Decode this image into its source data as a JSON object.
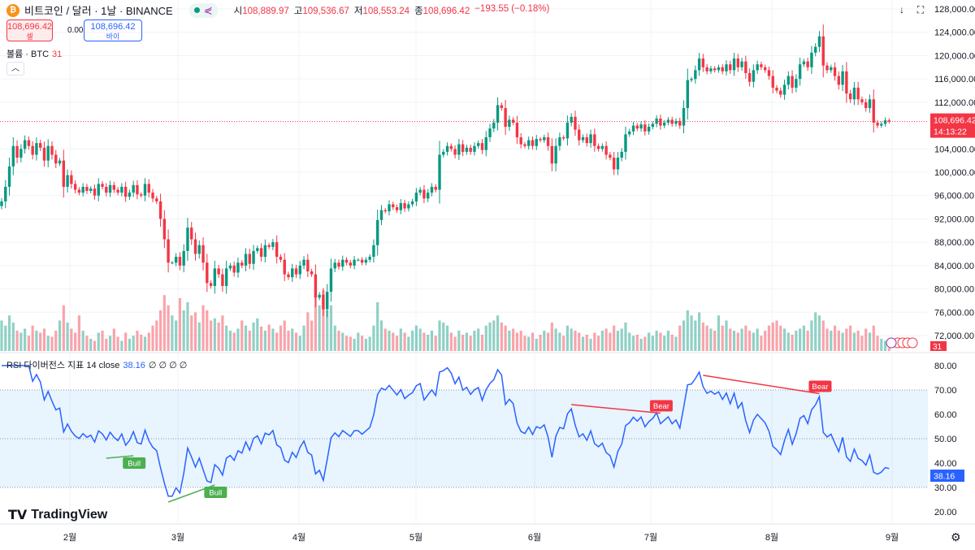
{
  "header": {
    "symbol_icon": "bitcoin-icon",
    "title": "비트코인 / 달러 · 1날 · BINANCE",
    "ohlc": [
      {
        "k": "시",
        "v": "108,889.97"
      },
      {
        "k": "고",
        "v": "109,536.67"
      },
      {
        "k": "저",
        "v": "108,553.24"
      },
      {
        "k": "종",
        "v": "108,696.42"
      }
    ],
    "change": "−193.55 (−0.18%)"
  },
  "trade": {
    "sell_price": "108,696.42",
    "sell_label": "셀",
    "spread": "0.00",
    "buy_price": "108,696.42",
    "buy_label": "바이"
  },
  "volume_legend": {
    "label": "볼륨 · BTC",
    "value": "31"
  },
  "rsi_legend": {
    "label": "RSI 다이버전스 지표 14 close",
    "value": "38.16",
    "extras": "∅ ∅ ∅ ∅"
  },
  "logo": "TradingView",
  "colors": {
    "up": "#089981",
    "down": "#f23645",
    "rsi": "#2962ff",
    "bull": "#4caf50",
    "bear": "#f23645"
  },
  "chart_data": [
    {
      "type": "candlestick",
      "ylim": [
        70000,
        129000
      ],
      "y_ticks": [
        "128,000.00",
        "124,000.00",
        "120,000.00",
        "116,000.00",
        "112,000.00",
        "104,000.00",
        "100,000.00",
        "96,000.00",
        "92,000.00",
        "88,000.00",
        "84,000.00",
        "80,000.00",
        "76,000.00",
        "72,000.00"
      ],
      "x_ticks": [
        "2월",
        "3월",
        "4월",
        "5월",
        "6월",
        "7월",
        "8월",
        "9월"
      ],
      "last_price": "108,696.42",
      "countdown": "14:13:22",
      "last_volume": "31",
      "close_k": [
        95.0,
        97.5,
        101.0,
        104.5,
        102.5,
        104.0,
        105.5,
        104.5,
        103.0,
        105.0,
        104.2,
        102.0,
        104.5,
        103.0,
        101.5,
        102.0,
        97.5,
        99.5,
        98.0,
        97.0,
        96.5,
        97.5,
        96.8,
        97.2,
        96.0,
        98.0,
        97.5,
        96.5,
        97.8,
        97.0,
        96.5,
        97.5,
        95.8,
        96.5,
        97.8,
        96.2,
        96.0,
        98.0,
        96.5,
        95.5,
        95.0,
        92.0,
        88.5,
        84.5,
        84.5,
        85.5,
        84.0,
        86.5,
        90.5,
        88.5,
        86.0,
        87.5,
        84.5,
        81.0,
        80.5,
        83.5,
        82.5,
        80.5,
        83.5,
        84.0,
        82.8,
        84.5,
        84.0,
        86.0,
        84.3,
        86.5,
        87.0,
        85.5,
        87.5,
        87.2,
        88.0,
        85.5,
        85.0,
        82.5,
        82.0,
        83.5,
        82.5,
        84.0,
        85.0,
        83.0,
        82.5,
        78.5,
        79.0,
        76.5,
        79.5,
        83.5,
        84.5,
        83.8,
        85.0,
        84.5,
        84.0,
        85.0,
        85.0,
        84.5,
        85.0,
        85.5,
        87.5,
        91.8,
        93.5,
        93.3,
        94.5,
        94.0,
        93.5,
        94.7,
        93.8,
        94.5,
        95.0,
        96.5,
        97.0,
        95.5,
        96.5,
        97.5,
        97.0,
        103.0,
        103.5,
        104.5,
        104.0,
        103.0,
        104.8,
        103.5,
        104.2,
        103.5,
        104.5,
        105.0,
        103.8,
        106.0,
        107.5,
        108.5,
        111.5,
        111.0,
        107.8,
        109.0,
        108.5,
        106.0,
        104.8,
        104.5,
        105.5,
        104.5,
        105.7,
        105.5,
        106.0,
        104.5,
        101.5,
        104.5,
        106.0,
        105.8,
        108.5,
        109.5,
        107.3,
        105.5,
        106.0,
        105.0,
        106.5,
        104.5,
        104.0,
        104.5,
        103.0,
        102.5,
        100.5,
        102.5,
        103.5,
        106.5,
        107.0,
        108.0,
        107.5,
        108.2,
        107.0,
        107.8,
        108.3,
        109.2,
        108.0,
        108.5,
        109.0,
        108.3,
        108.8,
        108.0,
        111.0,
        115.8,
        116.0,
        117.5,
        119.5,
        118.0,
        117.3,
        117.8,
        117.5,
        118.0,
        117.3,
        118.5,
        117.5,
        119.5,
        118.0,
        119.0,
        117.0,
        115.5,
        117.5,
        118.5,
        118.0,
        117.5,
        116.5,
        114.5,
        114.0,
        113.3,
        115.0,
        116.5,
        114.5,
        116.0,
        118.5,
        119.0,
        118.0,
        120.5,
        121.5,
        123.3,
        118.3,
        117.5,
        118.0,
        116.5,
        115.0,
        117.3,
        113.5,
        112.5,
        114.5,
        112.5,
        112.0,
        111.0,
        112.5,
        108.5,
        108.0,
        108.3,
        108.9,
        108.7
      ],
      "volume_k": [
        30,
        25,
        35,
        28,
        20,
        18,
        22,
        15,
        25,
        20,
        18,
        22,
        15,
        14,
        20,
        30,
        45,
        28,
        22,
        18,
        35,
        20,
        15,
        12,
        10,
        18,
        20,
        12,
        15,
        22,
        14,
        10,
        18,
        12,
        15,
        20,
        16,
        14,
        18,
        25,
        30,
        40,
        55,
        45,
        35,
        30,
        52,
        40,
        48,
        35,
        38,
        28,
        45,
        40,
        30,
        32,
        28,
        35,
        25,
        20,
        18,
        22,
        30,
        25,
        20,
        28,
        32,
        24,
        20,
        26,
        22,
        18,
        25,
        30,
        20,
        22,
        18,
        15,
        25,
        38,
        30,
        55,
        45,
        60,
        40,
        45,
        25,
        20,
        18,
        15,
        14,
        12,
        18,
        15,
        12,
        14,
        25,
        48,
        30,
        22,
        20,
        18,
        15,
        22,
        18,
        14,
        20,
        25,
        22,
        18,
        16,
        20,
        15,
        30,
        28,
        25,
        18,
        14,
        20,
        16,
        18,
        15,
        20,
        22,
        16,
        25,
        28,
        30,
        35,
        28,
        25,
        20,
        22,
        18,
        20,
        15,
        14,
        18,
        12,
        16,
        20,
        18,
        28,
        22,
        18,
        15,
        25,
        22,
        20,
        18,
        14,
        16,
        12,
        18,
        15,
        20,
        22,
        18,
        25,
        20,
        22,
        28,
        18,
        15,
        16,
        12,
        14,
        18,
        15,
        20,
        18,
        15,
        20,
        16,
        14,
        25,
        30,
        40,
        35,
        30,
        38,
        28,
        25,
        22,
        20,
        35,
        25,
        30,
        22,
        20,
        18,
        22,
        25,
        20,
        18,
        22,
        15,
        20,
        25,
        28,
        30,
        25,
        22,
        18,
        16,
        20,
        22,
        25,
        20,
        30,
        38,
        35,
        30,
        22,
        20,
        25,
        20,
        18,
        22,
        25,
        18,
        20,
        15,
        22,
        18,
        25,
        15,
        12,
        10,
        3
      ]
    },
    {
      "type": "line",
      "name": "RSI 14",
      "ylim": [
        18,
        82
      ],
      "y_ticks": [
        "80.00",
        "70.00",
        "60.00",
        "50.00",
        "40.00",
        "30.00",
        "20.00"
      ],
      "band": [
        30,
        70
      ],
      "midline": 50,
      "last_value": "38.16",
      "divergences": [
        {
          "kind": "bull",
          "label": "Bull",
          "from_index": 27,
          "to_index": 34,
          "from_rsi": 42,
          "to_rsi": 43
        },
        {
          "kind": "bull",
          "label": "Bull",
          "from_index": 43,
          "to_index": 55,
          "from_rsi": 24,
          "to_rsi": 31
        },
        {
          "kind": "bear",
          "label": "Bear",
          "from_index": 147,
          "to_index": 170,
          "from_rsi": 64,
          "to_rsi": 60.5
        },
        {
          "kind": "bear",
          "label": "Bear",
          "from_index": 181,
          "to_index": 211,
          "from_rsi": 76,
          "to_rsi": 68.5
        }
      ]
    }
  ]
}
